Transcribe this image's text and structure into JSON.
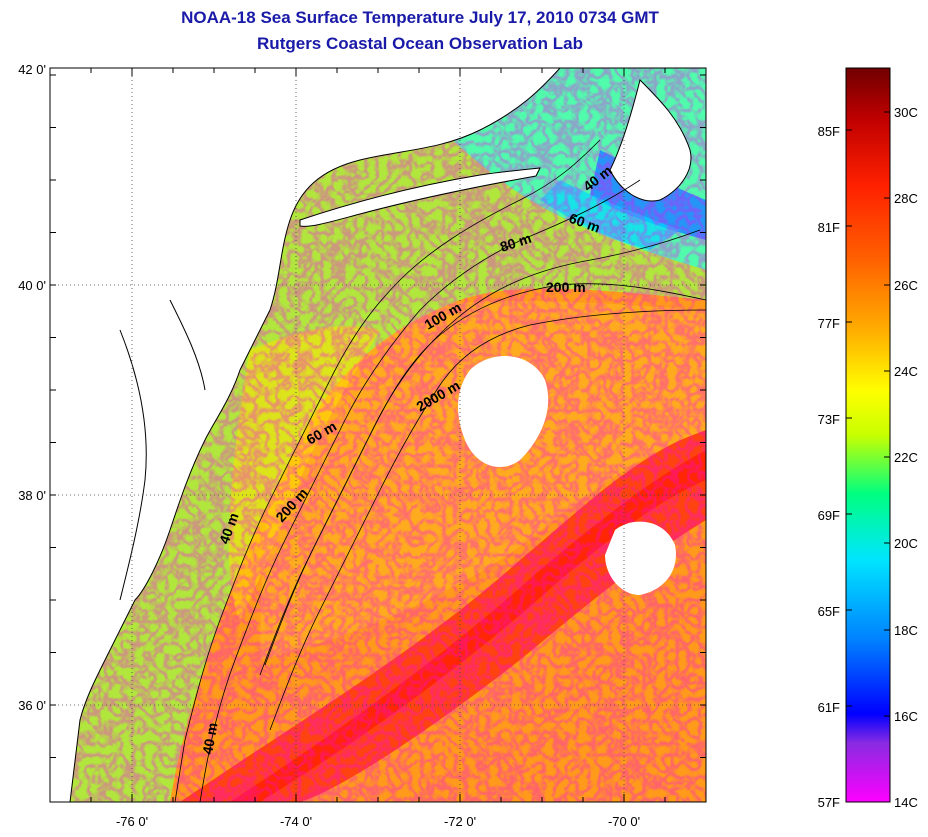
{
  "title": {
    "line1": "NOAA-18 Sea Surface Temperature July 17, 2010 0734 GMT",
    "line2": "Rutgers Coastal Ocean Observation Lab"
  },
  "axes": {
    "lat_labels": [
      "42 0'",
      "40 0'",
      "38 0'",
      "36 0'"
    ],
    "lon_labels": [
      "-76 0'",
      "-74 0'",
      "-72 0'",
      "-70 0'"
    ]
  },
  "isobaths": [
    {
      "label": "40 m"
    },
    {
      "label": "60 m"
    },
    {
      "label": "80 m"
    },
    {
      "label": "200 m"
    },
    {
      "label": "100 m"
    },
    {
      "label": "2000 m"
    },
    {
      "label": "60 m"
    },
    {
      "label": "200 m"
    },
    {
      "label": "40 m"
    },
    {
      "label": "40 m"
    }
  ],
  "colorbar": {
    "fahrenheit": [
      "85F",
      "81F",
      "77F",
      "73F",
      "69F",
      "65F",
      "61F",
      "57F"
    ],
    "celsius": [
      "30C",
      "28C",
      "26C",
      "24C",
      "22C",
      "20C",
      "18C",
      "16C",
      "14C"
    ],
    "colors": [
      "#ff00ff",
      "#8a2be2",
      "#0000ff",
      "#0080ff",
      "#00e5ff",
      "#00ff80",
      "#c8ff00",
      "#ffff00",
      "#ffb000",
      "#ff6000",
      "#ff2000",
      "#c00000",
      "#700000"
    ]
  },
  "colors": {
    "title": "#1a1aa8",
    "land": "#ffffff",
    "cloud": "#ffffff"
  }
}
